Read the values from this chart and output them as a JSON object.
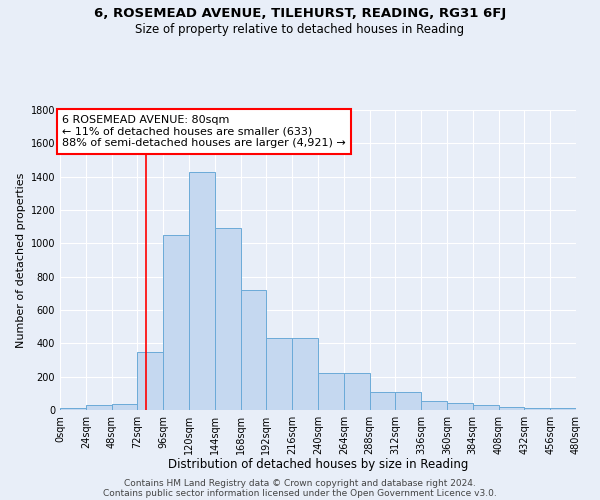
{
  "title": "6, ROSEMEAD AVENUE, TILEHURST, READING, RG31 6FJ",
  "subtitle": "Size of property relative to detached houses in Reading",
  "xlabel": "Distribution of detached houses by size in Reading",
  "ylabel": "Number of detached properties",
  "bin_edges": [
    0,
    24,
    48,
    72,
    96,
    120,
    144,
    168,
    192,
    216,
    240,
    264,
    288,
    312,
    336,
    360,
    384,
    408,
    432,
    456,
    480
  ],
  "bar_heights": [
    10,
    30,
    35,
    350,
    1050,
    1430,
    1090,
    720,
    430,
    430,
    220,
    220,
    110,
    110,
    55,
    40,
    30,
    20,
    15,
    10
  ],
  "bar_color": "#c5d8f0",
  "bar_edgecolor": "#6baad8",
  "bg_color": "#e8eef8",
  "grid_color": "#ffffff",
  "red_line_x": 80,
  "annotation_line1": "6 ROSEMEAD AVENUE: 80sqm",
  "annotation_line2": "← 11% of detached houses are smaller (633)",
  "annotation_line3": "88% of semi-detached houses are larger (4,921) →",
  "ylim": [
    0,
    1800
  ],
  "yticks": [
    0,
    200,
    400,
    600,
    800,
    1000,
    1200,
    1400,
    1600,
    1800
  ],
  "xtick_labels": [
    "0sqm",
    "24sqm",
    "48sqm",
    "72sqm",
    "96sqm",
    "120sqm",
    "144sqm",
    "168sqm",
    "192sqm",
    "216sqm",
    "240sqm",
    "264sqm",
    "288sqm",
    "312sqm",
    "336sqm",
    "360sqm",
    "384sqm",
    "408sqm",
    "432sqm",
    "456sqm",
    "480sqm"
  ],
  "footer_line1": "Contains HM Land Registry data © Crown copyright and database right 2024.",
  "footer_line2": "Contains public sector information licensed under the Open Government Licence v3.0.",
  "title_fontsize": 9.5,
  "subtitle_fontsize": 8.5,
  "xlabel_fontsize": 8.5,
  "ylabel_fontsize": 8,
  "tick_fontsize": 7,
  "annotation_fontsize": 8,
  "footer_fontsize": 6.5
}
